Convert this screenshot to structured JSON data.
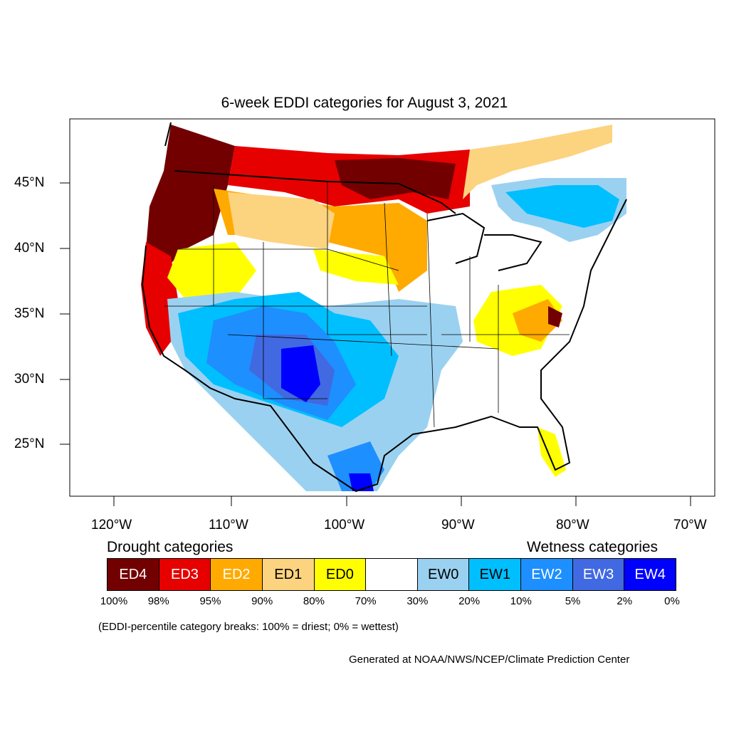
{
  "title": "6-week EDDI categories for August 3, 2021",
  "lat_labels": [
    "45°N",
    "40°N",
    "35°N",
    "30°N",
    "25°N"
  ],
  "lon_labels": [
    "120°W",
    "110°W",
    "100°W",
    "90°W",
    "80°W",
    "70°W"
  ],
  "legend": {
    "drought_caption": "Drought categories",
    "wetness_caption": "Wetness categories",
    "categories": [
      {
        "label": "ED4",
        "color": "#730000",
        "text_color": "#ffffff"
      },
      {
        "label": "ED3",
        "color": "#e60000",
        "text_color": "#ffffff"
      },
      {
        "label": "ED2",
        "color": "#ffaa00",
        "text_color": "#ffffff"
      },
      {
        "label": "ED1",
        "color": "#fcd37f",
        "text_color": "#000000"
      },
      {
        "label": "ED0",
        "color": "#ffff00",
        "text_color": "#000000"
      },
      {
        "label": "",
        "color": "#ffffff",
        "text_color": "#000000"
      },
      {
        "label": "EW0",
        "color": "#9bd1f0",
        "text_color": "#000000"
      },
      {
        "label": "EW1",
        "color": "#00bfff",
        "text_color": "#000000"
      },
      {
        "label": "EW2",
        "color": "#1e8fff",
        "text_color": "#ffffff"
      },
      {
        "label": "EW3",
        "color": "#4169e1",
        "text_color": "#ffffff"
      },
      {
        "label": "EW4",
        "color": "#0000ff",
        "text_color": "#ffffff"
      }
    ],
    "percentiles": [
      "100%",
      "98%",
      "95%",
      "90%",
      "80%",
      "70%",
      "30%",
      "20%",
      "10%",
      "5%",
      "2%",
      "0%"
    ]
  },
  "note": "(EDDI-percentile category breaks: 100% = driest; 0% = wettest)",
  "credit": "Generated at NOAA/NWS/NCEP/Climate Prediction Center"
}
